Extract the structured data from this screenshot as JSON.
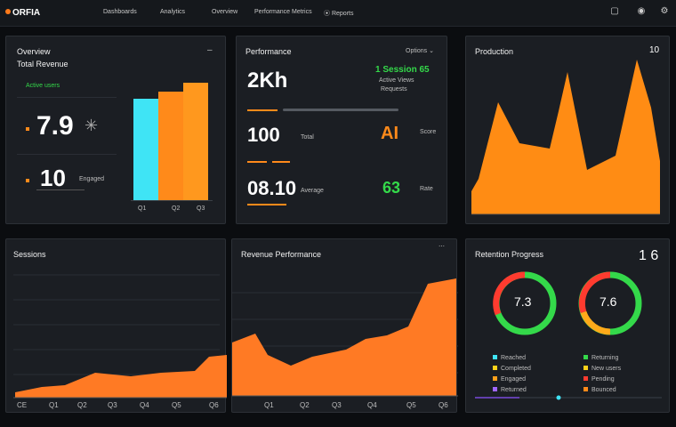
{
  "app": {
    "logo": "ORFIA"
  },
  "topnav": {
    "items": [
      "Dashboards",
      "Analytics",
      "Overview",
      "Performance Metrics",
      "Reports"
    ]
  },
  "icons": {
    "notifications": "bell-icon",
    "user": "user-icon",
    "settings": "gear-icon"
  },
  "colors": {
    "accent": "#ff8a1a",
    "cyan": "#3fe4f5",
    "green": "#34d94a",
    "red": "#ff3b2f",
    "panel": "#1b1e23"
  },
  "panel1": {
    "title": "Overview",
    "subtitle": "Total Revenue",
    "green_label": "Active users",
    "metric1": "7.9",
    "metric2": "10",
    "metric2_note": "Engaged",
    "bar_labels": [
      "Q1",
      "Q2",
      "Q3"
    ]
  },
  "panel2": {
    "title": "Performance",
    "menu": "Options",
    "row1_value": "2Kh",
    "row1_green": "1 Session 65",
    "row1_sub": "Active Views",
    "row1_sub2": "Requests",
    "row2_value": "100",
    "row2_unit": "Total",
    "row2_orange": "AI",
    "row2_note": "Score",
    "row3_value": "08.10",
    "row3_unit": "Average",
    "row3_green": "63",
    "row3_note": "Rate"
  },
  "panel3": {
    "title": "Production",
    "badge": "10"
  },
  "panel4": {
    "title": "Sessions",
    "x_labels": [
      "CE",
      "Q1",
      "Q2",
      "Q3",
      "Q4",
      "Q5",
      "Q6"
    ]
  },
  "panel5": {
    "title": "Revenue Performance",
    "x_labels": [
      "Q1",
      "Q2",
      "Q3",
      "Q4",
      "Q5",
      "Q6"
    ]
  },
  "panel6": {
    "title": "Retention Progress",
    "value": "1 6",
    "gauge1_label": "7.3",
    "gauge2_label": "7.6",
    "legend_left": [
      "Reached",
      "Completed",
      "Engaged",
      "Returned"
    ],
    "legend_right": [
      "Returning",
      "New users",
      "Pending",
      "Bounced"
    ]
  }
}
